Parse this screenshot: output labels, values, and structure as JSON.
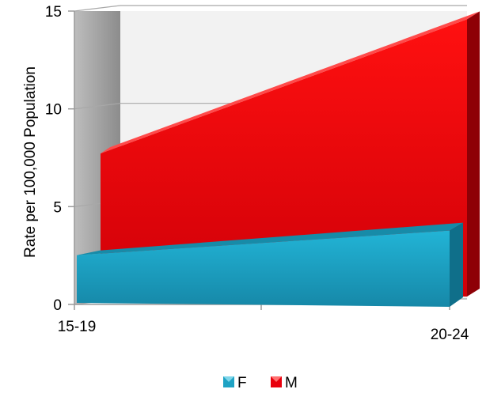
{
  "chart_data": {
    "type": "area",
    "view": "3d",
    "categories": [
      "15-19",
      "20-24"
    ],
    "series": [
      {
        "name": "F",
        "values": [
          2.6,
          4.1
        ],
        "color": "#1fa3c4"
      },
      {
        "name": "M",
        "values": [
          7.8,
          14.7
        ],
        "color": "#e8000d"
      }
    ],
    "ylabel": "Rate per 100,000 Population",
    "xlabel": "",
    "ylim": [
      0,
      15
    ],
    "yticks": [
      0,
      5,
      10,
      15
    ],
    "grid": true,
    "legend_position": "bottom"
  }
}
